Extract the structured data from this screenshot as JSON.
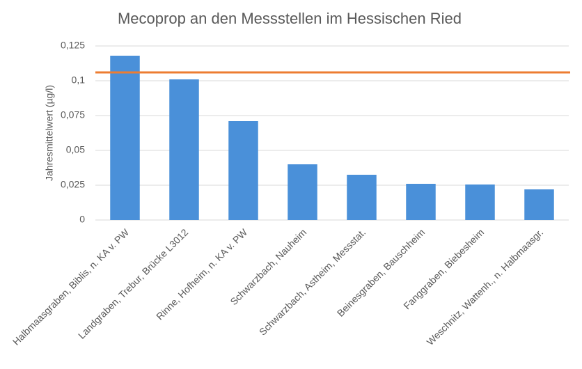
{
  "chart_data": {
    "type": "bar",
    "title": "Mecoprop an den Messstellen im Hessischen Ried",
    "y_label": "Jahresmittelwert (µg/l)",
    "categories": [
      "Halbmaasgraben, Biblis, n. KA v. PW",
      "Landgraben, Trebur, Brücke L3012",
      "Rinne, Hofheim, n. KA v. PW",
      "Schwarzbach, Nauheim",
      "Schwarzbach, Astheim, Messstat.",
      "Beinesgraben, Bauschheim",
      "Fanggraben, Biebesheim",
      "Weschnitz, Wattenh., n. Halbmaasgr."
    ],
    "values": [
      0.118,
      0.101,
      0.071,
      0.04,
      0.0325,
      0.026,
      0.0255,
      0.022
    ],
    "color": "#4a90d9",
    "reference_line": 0.106,
    "reference_color": "#ed7d31",
    "ylim": [
      0,
      0.125
    ],
    "yticks": [
      0,
      {
        "value": 0.025,
        "label": "0,025"
      },
      {
        "value": 0.05,
        "label": "0,05"
      },
      {
        "value": 0.075,
        "label": "0,075"
      },
      {
        "value": 0.1,
        "label": "0,1"
      },
      {
        "value": 0.125,
        "label": "0,125"
      }
    ],
    "grid": true
  }
}
